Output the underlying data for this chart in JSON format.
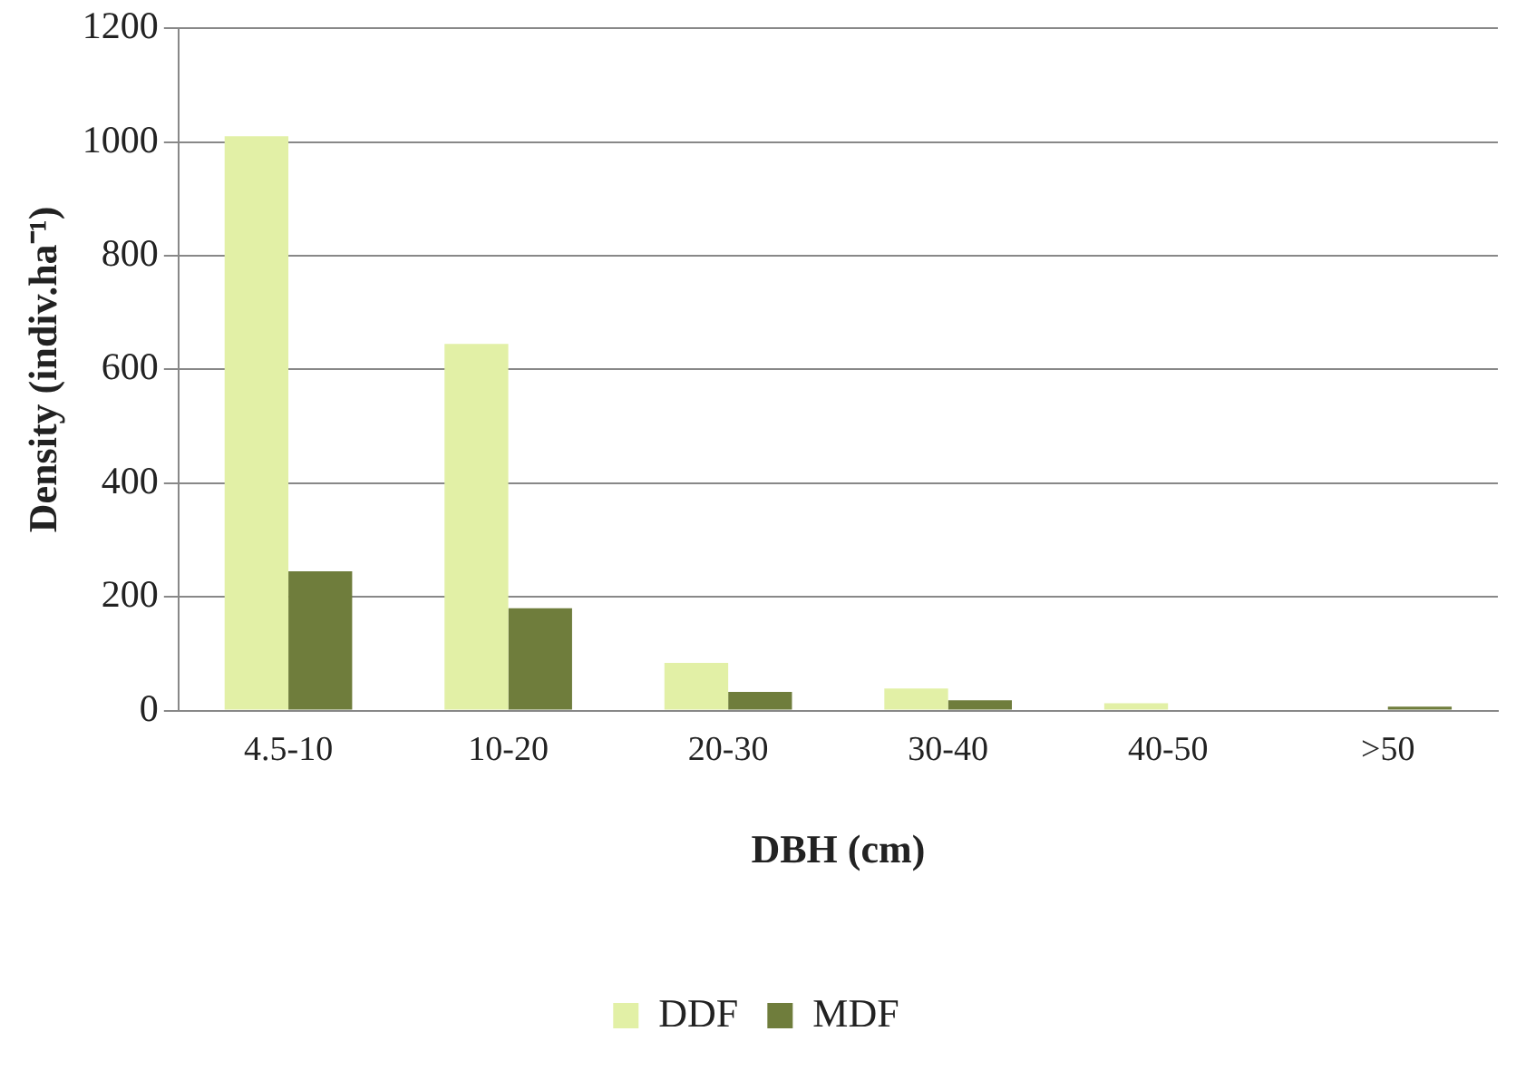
{
  "chart_data": {
    "type": "bar",
    "xlabel": "DBH (cm)",
    "ylabel": "Density (indiv.ha⁻¹)",
    "categories": [
      "4.5-10",
      "10-20",
      "20-30",
      "30-40",
      "40-50",
      ">50"
    ],
    "series": [
      {
        "name": "DDF",
        "color": "#e2f0a6",
        "values": [
          1010,
          645,
          84,
          39,
          13,
          0
        ]
      },
      {
        "name": "MDF",
        "color": "#6f7d3c",
        "values": [
          245,
          180,
          33,
          18,
          0,
          7
        ]
      }
    ],
    "ylim": [
      0,
      1200
    ],
    "yticks": [
      0,
      200,
      400,
      600,
      800,
      1000,
      1200
    ],
    "grid": "y",
    "legend": "bottom"
  }
}
